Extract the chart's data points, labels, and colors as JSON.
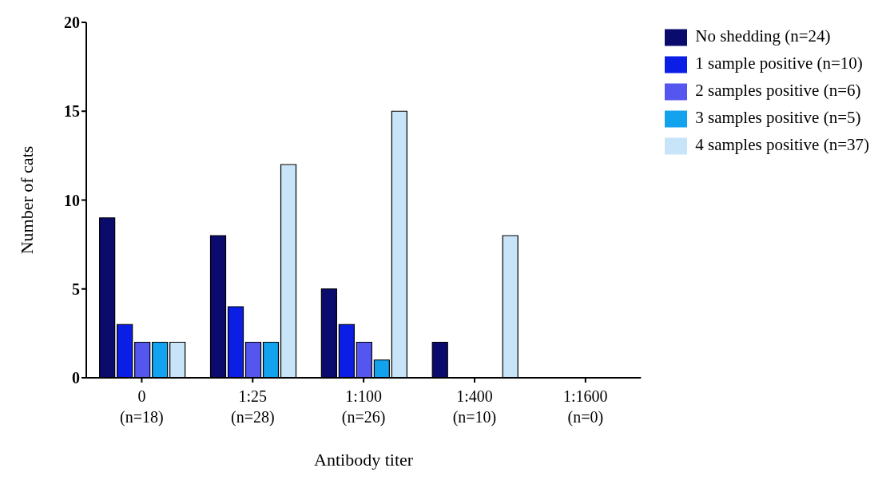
{
  "chart_data": {
    "type": "bar",
    "xlabel": "Antibody titer",
    "ylabel": "Number of cats",
    "categories": [
      "0\n(n=18)",
      "1:25\n(n=28)",
      "1:100\n(n=26)",
      "1:400\n(n=10)",
      "1:1600\n(n=0)"
    ],
    "series": [
      {
        "name": "No shedding (n=24)",
        "color": "#0b0b6e",
        "values": [
          9,
          8,
          5,
          2,
          0
        ]
      },
      {
        "name": "1 sample positive (n=10)",
        "color": "#0a1ee6",
        "values": [
          3,
          4,
          3,
          0,
          0
        ]
      },
      {
        "name": "2 samples positive (n=6)",
        "color": "#5555f0",
        "values": [
          2,
          2,
          2,
          0,
          0
        ]
      },
      {
        "name": "3 samples positive (n=5)",
        "color": "#12a2ee",
        "values": [
          2,
          2,
          1,
          0,
          0
        ]
      },
      {
        "name": "4 samples positive (n=37)",
        "color": "#c8e4f8",
        "values": [
          2,
          12,
          15,
          8,
          0
        ]
      }
    ],
    "ylim": [
      0,
      20
    ],
    "yticks": [
      0,
      5,
      10,
      15,
      20
    ],
    "grid": false,
    "legend": "top right"
  }
}
